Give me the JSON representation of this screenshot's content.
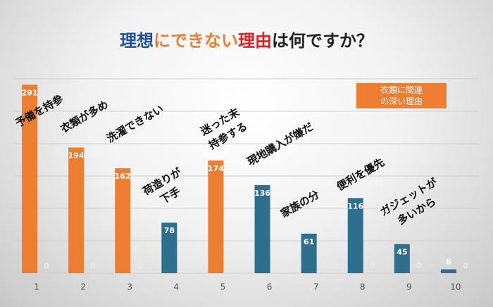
{
  "chart_data": {
    "type": "bar",
    "title_parts": [
      {
        "text": "理想",
        "color": "#1f4e9c"
      },
      {
        "text": "にできない",
        "color": "#ed7d31"
      },
      {
        "text": "理由",
        "color": "#e02020"
      },
      {
        "text": "は何ですか？",
        "color": "#222222"
      }
    ],
    "categories": [
      "1",
      "2",
      "3",
      "4",
      "5",
      "6",
      "7",
      "8",
      "9",
      "10"
    ],
    "series": [
      {
        "values": [
          291,
          194,
          162,
          78,
          174,
          136,
          61,
          116,
          45,
          6
        ],
        "colors": [
          "#ed7d31",
          "#ed7d31",
          "#ed7d31",
          "#2e6f8e",
          "#ed7d31",
          "#2e6f8e",
          "#2e6f8e",
          "#2e6f8e",
          "#2e6f8e",
          "#2e6f8e"
        ]
      },
      {
        "values": [
          0,
          0,
          0,
          0,
          0,
          0,
          0,
          0,
          0,
          0
        ],
        "color": "#2e6f8e"
      }
    ],
    "ylim": [
      0,
      300
    ],
    "yticks": [
      0,
      50,
      100,
      150,
      200,
      250,
      300
    ],
    "grid": true,
    "legend": {
      "text": "衣類に関連\nの深い理由",
      "color": "#ed7d31"
    },
    "annotations": [
      "予備を持参",
      "衣類が多め",
      "洗濯できない",
      "荷造りが\n下手",
      "迷った末\n持参する",
      "現地購入が嫌だ",
      "家族の分",
      "便利を優先",
      "ガジェットが\n多いから"
    ]
  }
}
